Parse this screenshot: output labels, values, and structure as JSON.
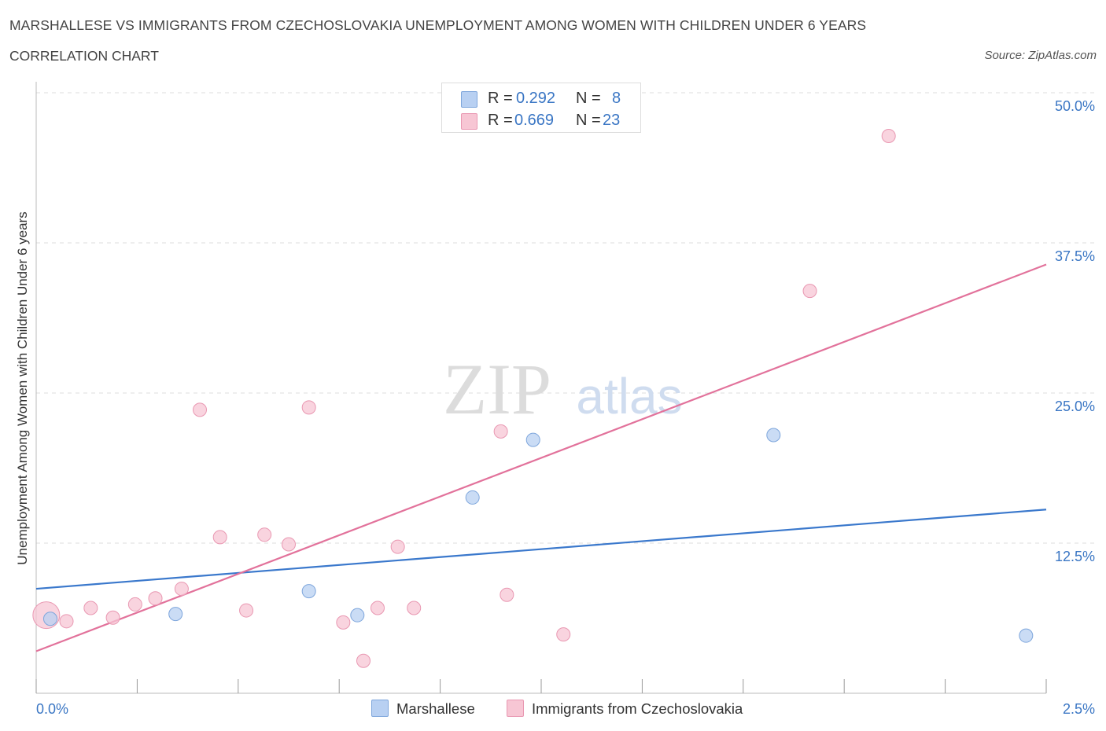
{
  "title": "MARSHALLESE VS IMMIGRANTS FROM CZECHOSLOVAKIA UNEMPLOYMENT AMONG WOMEN WITH CHILDREN UNDER 6 YEARS",
  "subtitle": "CORRELATION CHART",
  "source": "Source: ZipAtlas.com",
  "watermark": {
    "zip": "ZIP",
    "atlas": "atlas"
  },
  "legend_top": [
    {
      "r_label": "R =",
      "r_value": "0.292",
      "n_label": "N =",
      "n_value": "8"
    },
    {
      "r_label": "R =",
      "r_value": "0.669",
      "n_label": "N =",
      "n_value": "23"
    }
  ],
  "colors": {
    "blue_fill": "#b8d0f2",
    "blue_stroke": "#7ea6dc",
    "blue_line": "#3a78cc",
    "pink_fill": "#f7c6d4",
    "pink_stroke": "#e998b2",
    "pink_line": "#e2729b",
    "axis_text": "#3a76c4",
    "grid": "#dddddd"
  },
  "chart_data": {
    "type": "scatter",
    "title": "MARSHALLESE VS IMMIGRANTS FROM CZECHOSLOVAKIA UNEMPLOYMENT AMONG WOMEN WITH CHILDREN UNDER 6 YEARS",
    "xlabel": "",
    "ylabel": "Unemployment Among Women with Children Under 6 years",
    "xlim": [
      0,
      2.5
    ],
    "ylim": [
      0,
      50
    ],
    "x_tick_labels": [
      "0.0%",
      "2.5%"
    ],
    "y_ticks": [
      12.5,
      25.0,
      37.5,
      50.0
    ],
    "y_tick_labels": [
      "12.5%",
      "25.0%",
      "37.5%",
      "50.0%"
    ],
    "legend_position": "bottom-center",
    "series": [
      {
        "name": "Marshallese",
        "color": "blue",
        "points": [
          {
            "x": 0.035,
            "y": 6.2
          },
          {
            "x": 0.345,
            "y": 6.6
          },
          {
            "x": 0.675,
            "y": 8.5
          },
          {
            "x": 0.795,
            "y": 6.5
          },
          {
            "x": 1.08,
            "y": 16.3
          },
          {
            "x": 1.23,
            "y": 21.1
          },
          {
            "x": 1.825,
            "y": 21.5
          },
          {
            "x": 2.45,
            "y": 4.8
          }
        ],
        "trend": {
          "x": [
            0.0,
            2.5
          ],
          "y": [
            8.7,
            15.3
          ]
        }
      },
      {
        "name": "Immigrants from Czechoslovakia",
        "color": "pink",
        "points": [
          {
            "x": 0.025,
            "y": 6.5,
            "size": "large"
          },
          {
            "x": 0.075,
            "y": 6.0
          },
          {
            "x": 0.135,
            "y": 7.1
          },
          {
            "x": 0.19,
            "y": 6.3
          },
          {
            "x": 0.245,
            "y": 7.4
          },
          {
            "x": 0.295,
            "y": 7.9
          },
          {
            "x": 0.36,
            "y": 8.7
          },
          {
            "x": 0.405,
            "y": 23.6
          },
          {
            "x": 0.455,
            "y": 13.0
          },
          {
            "x": 0.52,
            "y": 6.9
          },
          {
            "x": 0.565,
            "y": 13.2
          },
          {
            "x": 0.625,
            "y": 12.4
          },
          {
            "x": 0.675,
            "y": 23.8
          },
          {
            "x": 0.76,
            "y": 5.9
          },
          {
            "x": 0.81,
            "y": 2.7
          },
          {
            "x": 0.845,
            "y": 7.1
          },
          {
            "x": 0.895,
            "y": 12.2
          },
          {
            "x": 0.935,
            "y": 7.1
          },
          {
            "x": 1.15,
            "y": 21.8
          },
          {
            "x": 1.165,
            "y": 8.2
          },
          {
            "x": 1.305,
            "y": 4.9
          },
          {
            "x": 1.915,
            "y": 33.5
          },
          {
            "x": 2.11,
            "y": 46.4
          }
        ],
        "trend": {
          "x": [
            0.0,
            2.5
          ],
          "y": [
            3.5,
            35.7
          ]
        }
      }
    ]
  }
}
